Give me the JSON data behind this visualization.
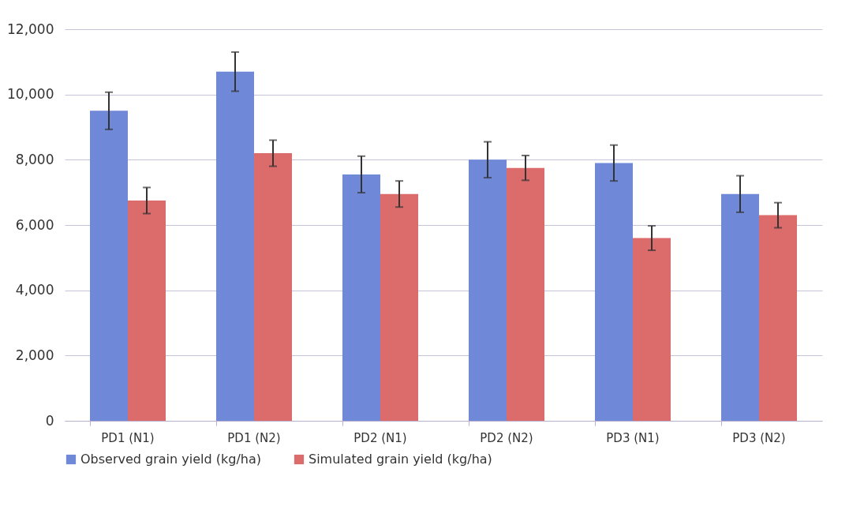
{
  "chart_data": {
    "type": "bar",
    "categories": [
      "PD1 (N1)",
      "PD1 (N2)",
      "PD2 (N1)",
      "PD2 (N2)",
      "PD3 (N1)",
      "PD3 (N2)"
    ],
    "series": [
      {
        "name": "Observed grain yield (kg/ha)",
        "color": "#6f88d8",
        "values": [
          9500,
          10700,
          7550,
          8000,
          7900,
          6950
        ],
        "errors": [
          570,
          600,
          560,
          550,
          550,
          560
        ]
      },
      {
        "name": "Simulated grain yield (kg/ha)",
        "color": "#dc6b6b",
        "values": [
          6750,
          8200,
          6950,
          7750,
          5600,
          6300
        ],
        "errors": [
          400,
          400,
          400,
          380,
          375,
          385
        ]
      }
    ],
    "ylim": [
      0,
      12000
    ],
    "yticks": [
      0,
      {
        "value": 2000,
        "label": "2,000"
      },
      {
        "value": 4000,
        "label": "4,000"
      },
      {
        "value": 6000,
        "label": "6,000"
      },
      {
        "value": 8000,
        "label": "8,000"
      },
      {
        "value": 10000,
        "label": "10,000"
      },
      {
        "value": 12000,
        "label": "12,000"
      }
    ],
    "grid": "y",
    "legend": "bottom"
  }
}
